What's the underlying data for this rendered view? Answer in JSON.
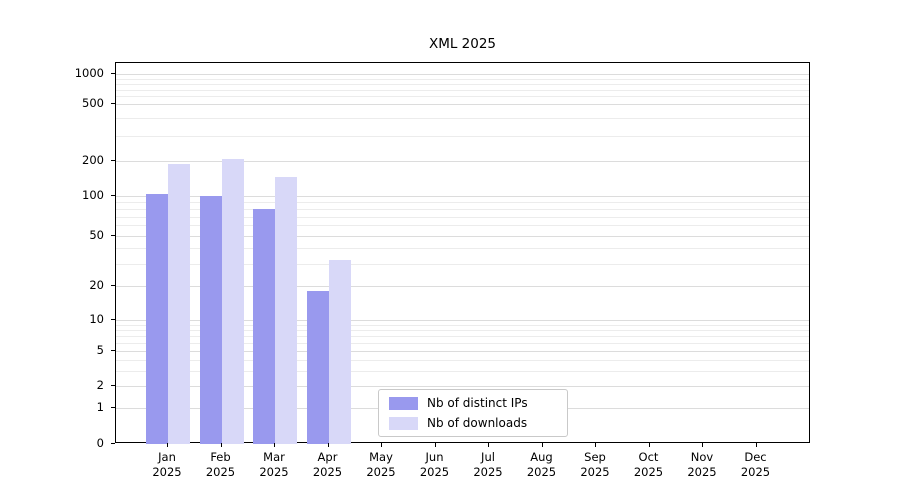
{
  "chart_data": {
    "type": "bar",
    "title": "XML 2025",
    "categories": [
      "Jan",
      "Feb",
      "Mar",
      "Apr",
      "May",
      "Jun",
      "Jul",
      "Aug",
      "Sep",
      "Oct",
      "Nov",
      "Dec"
    ],
    "category_year": "2025",
    "series": [
      {
        "name": "Nb of distinct IPs",
        "color": "#9999ee",
        "values": [
          103,
          100,
          80,
          18,
          null,
          null,
          null,
          null,
          null,
          null,
          null,
          null
        ]
      },
      {
        "name": "Nb of downloads",
        "color": "#d8d8f8",
        "values": [
          190,
          205,
          145,
          32,
          null,
          null,
          null,
          null,
          null,
          null,
          null,
          null
        ]
      }
    ],
    "y_axis": {
      "scale": "log-with-zero",
      "ticks": [
        0,
        1,
        2,
        5,
        10,
        20,
        50,
        100,
        200,
        500,
        1000
      ],
      "minor_ticks": [
        3,
        4,
        6,
        7,
        8,
        9,
        30,
        40,
        60,
        70,
        80,
        90,
        300,
        400,
        600,
        700,
        800,
        900
      ],
      "range": [
        0,
        1000
      ]
    },
    "grid": "horizontal",
    "legend_position": "bottom-center-inside"
  }
}
